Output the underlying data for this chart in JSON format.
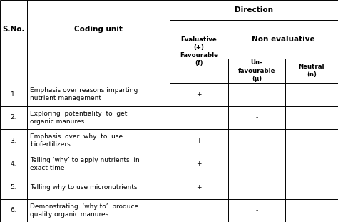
{
  "col_headers": {
    "direction": "Direction",
    "evaluative": "Evaluative\n(+)\nFavourable\n(f)",
    "non_evaluative": "Non evaluative",
    "unfavourable": "Un-\nfavourable\n(μ)",
    "neutral": "Neutral\n(n)"
  },
  "sno_header": "S.No.",
  "coding_header": "Coding unit",
  "rows": [
    {
      "sno": "1.",
      "coding": "Emphasis over reasons imparting\nnutrient management",
      "evaluative": "+",
      "unfavourable": "",
      "neutral": ""
    },
    {
      "sno": "2.",
      "coding": "Exploring  potentiality  to  get\norganic manures",
      "evaluative": "",
      "unfavourable": "-",
      "neutral": ""
    },
    {
      "sno": "3.",
      "coding": "Emphasis  over  why  to  use\nbiofertilizers",
      "evaluative": "+",
      "unfavourable": "",
      "neutral": ""
    },
    {
      "sno": "4.",
      "coding": "Telling ‘why’ to apply nutrients  in\nexact time",
      "evaluative": "+",
      "unfavourable": "",
      "neutral": ""
    },
    {
      "sno": "5.",
      "coding": "Telling why to use micronutrients",
      "evaluative": "+",
      "unfavourable": "",
      "neutral": ""
    },
    {
      "sno": "6.",
      "coding": "Demonstrating  ‘why to’  produce\nquality organic manures",
      "evaluative": "",
      "unfavourable": "-",
      "neutral": ""
    }
  ],
  "bg_color": "#ffffff",
  "line_color": "#000000",
  "text_color": "#000000",
  "lw": 0.7,
  "fs_header_large": 7.5,
  "fs_header_small": 6.2,
  "fs_data": 6.5
}
